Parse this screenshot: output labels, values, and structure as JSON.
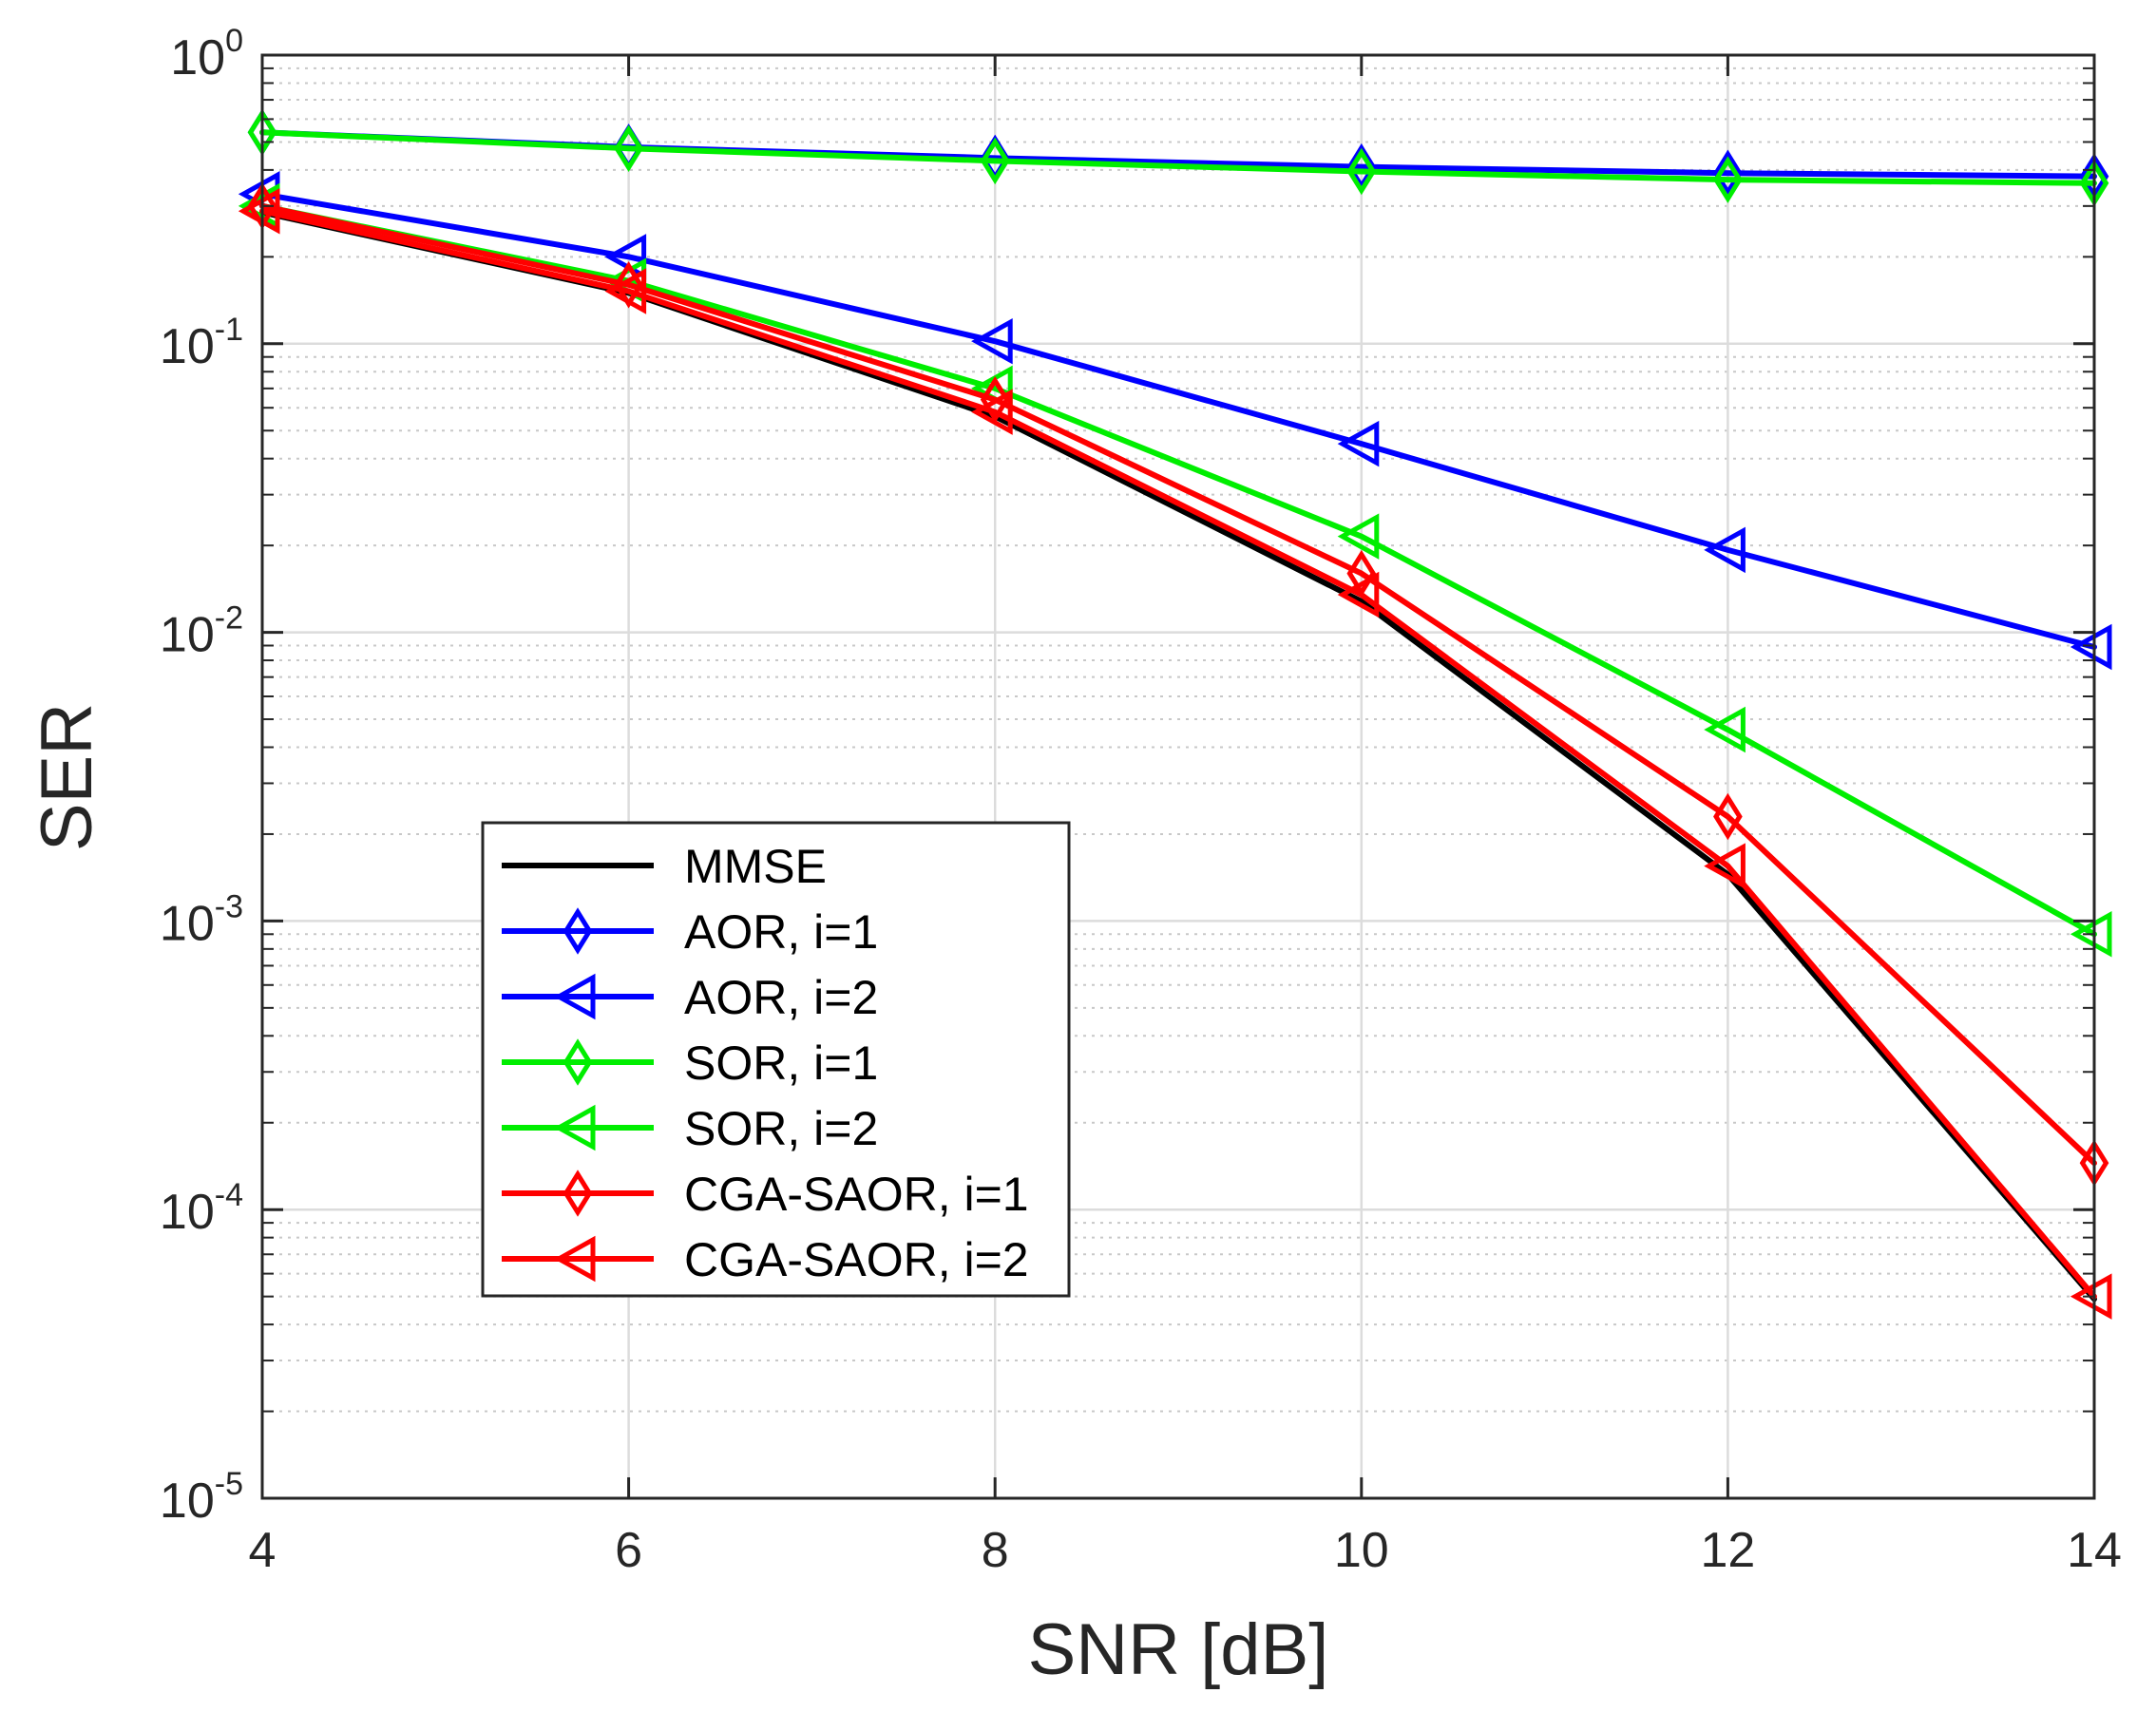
{
  "chart_data": {
    "type": "line",
    "title": "",
    "xlabel": "SNR [dB]",
    "ylabel": "SER",
    "xscale": "linear",
    "yscale": "log",
    "xlim": [
      4,
      14
    ],
    "ylim": [
      1e-05,
      1
    ],
    "grid": true,
    "minor_grid": true,
    "legend_position": "lower-left",
    "x_ticks": [
      4,
      6,
      8,
      10,
      12,
      14
    ],
    "x_tick_labels": [
      "4",
      "6",
      "8",
      "10",
      "12",
      "14"
    ],
    "y_ticks": [
      {
        "value": 1,
        "base": "10",
        "exp": "0"
      },
      {
        "value": 0.1,
        "base": "10",
        "exp": "-1"
      },
      {
        "value": 0.01,
        "base": "10",
        "exp": "-2"
      },
      {
        "value": 0.001,
        "base": "10",
        "exp": "-3"
      },
      {
        "value": 0.0001,
        "base": "10",
        "exp": "-4"
      },
      {
        "value": 1e-05,
        "base": "10",
        "exp": "-5"
      }
    ],
    "x": [
      4,
      6,
      8,
      10,
      12,
      14
    ],
    "series": [
      {
        "name": "MMSE",
        "color": "#000000",
        "marker": "none",
        "values": [
          0.285,
          0.15,
          0.056,
          0.0128,
          0.00145,
          4.9e-05
        ]
      },
      {
        "name": "AOR, i=1",
        "color": "#0000ff",
        "marker": "diamond",
        "values": [
          0.54,
          0.48,
          0.44,
          0.41,
          0.39,
          0.38
        ]
      },
      {
        "name": "AOR, i=2",
        "color": "#0000ff",
        "marker": "triangle-left",
        "values": [
          0.33,
          0.2,
          0.102,
          0.045,
          0.0193,
          0.0089
        ]
      },
      {
        "name": "SOR, i=1",
        "color": "#00ee00",
        "marker": "diamond",
        "values": [
          0.54,
          0.475,
          0.43,
          0.395,
          0.37,
          0.36
        ]
      },
      {
        "name": "SOR, i=2",
        "color": "#00ee00",
        "marker": "triangle-left",
        "values": [
          0.3,
          0.165,
          0.07,
          0.0215,
          0.0046,
          0.0009
        ]
      },
      {
        "name": "CGA-SAOR, i=1",
        "color": "#ff0000",
        "marker": "diamond",
        "values": [
          0.3,
          0.16,
          0.064,
          0.016,
          0.0023,
          0.000145
        ]
      },
      {
        "name": "CGA-SAOR, i=2",
        "color": "#ff0000",
        "marker": "triangle-left",
        "values": [
          0.288,
          0.152,
          0.058,
          0.0135,
          0.00155,
          5e-05
        ]
      }
    ]
  }
}
